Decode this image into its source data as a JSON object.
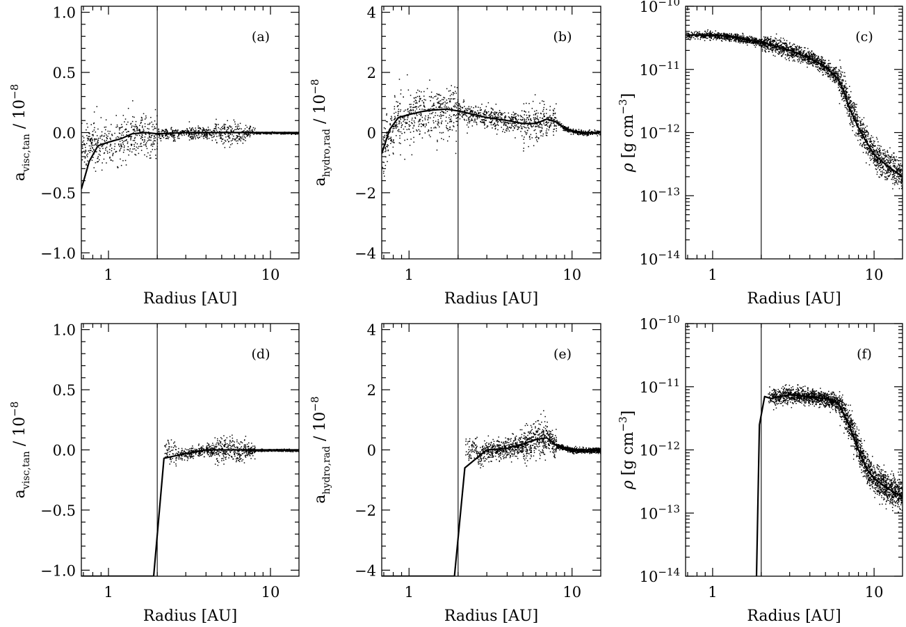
{
  "figure": {
    "description_colors": {
      "ink": "#000000",
      "background": "#ffffff"
    }
  },
  "chart_data": [
    {
      "id": "a",
      "type": "scatter",
      "panel_label": "(a)",
      "xlabel": "Radius [AU]",
      "x_scale": "log",
      "xlim": [
        0.68,
        15
      ],
      "x_ticks": [
        {
          "value": 1,
          "label": "1"
        },
        {
          "value": 10,
          "label": "10"
        }
      ],
      "ylabel_main": "a",
      "ylabel_sub": "visc,tan",
      "ylabel_suffix": " / 10",
      "ylabel_exp": "−8",
      "y_scale": "linear",
      "ylim": [
        -1.05,
        1.05
      ],
      "y_ticks": [
        {
          "value": -1,
          "label": "−1.0"
        },
        {
          "value": -0.5,
          "label": "−0.5"
        },
        {
          "value": 0,
          "label": "0.0"
        },
        {
          "value": 0.5,
          "label": "0.5"
        },
        {
          "value": 1,
          "label": "1.0"
        }
      ],
      "vline_x": 2.0,
      "mean_curve": {
        "x": [
          0.68,
          0.76,
          0.86,
          1.0,
          1.2,
          1.4,
          1.7,
          2.0,
          3.0,
          5.0,
          8.0,
          15.0
        ],
        "y": [
          -0.47,
          -0.24,
          -0.11,
          -0.08,
          -0.05,
          -0.01,
          0.0,
          -0.01,
          0.0,
          0.0,
          0.0,
          0.0
        ]
      },
      "scatter": {
        "x_range": [
          0.68,
          15
        ],
        "count": 1300,
        "inner_cut": 0.68,
        "profile": "visc_full",
        "seed": 11
      }
    },
    {
      "id": "b",
      "type": "scatter",
      "panel_label": "(b)",
      "xlabel": "Radius [AU]",
      "x_scale": "log",
      "xlim": [
        0.68,
        15
      ],
      "x_ticks": [
        {
          "value": 1,
          "label": "1"
        },
        {
          "value": 10,
          "label": "10"
        }
      ],
      "ylabel_main": "a",
      "ylabel_sub": "hydro,rad",
      "ylabel_suffix": " / 10",
      "ylabel_exp": "−8",
      "y_scale": "linear",
      "ylim": [
        -4.2,
        4.2
      ],
      "y_ticks": [
        {
          "value": -4,
          "label": "−4"
        },
        {
          "value": -2,
          "label": "−2"
        },
        {
          "value": 0,
          "label": "0"
        },
        {
          "value": 2,
          "label": "2"
        },
        {
          "value": 4,
          "label": "4"
        }
      ],
      "vline_x": 2.0,
      "mean_curve": {
        "x": [
          0.68,
          0.76,
          0.86,
          1.0,
          1.2,
          1.4,
          1.7,
          2.0,
          2.5,
          3.0,
          4.0,
          5.0,
          6.0,
          7.0,
          8.0,
          9.0,
          10.0,
          12.0,
          15.0
        ],
        "y": [
          -0.7,
          0.1,
          0.5,
          0.6,
          0.7,
          0.75,
          0.78,
          0.72,
          0.6,
          0.5,
          0.4,
          0.3,
          0.3,
          0.45,
          0.35,
          0.15,
          0.05,
          0.0,
          0.0
        ]
      },
      "scatter": {
        "x_range": [
          0.68,
          15
        ],
        "count": 1500,
        "inner_cut": 0.68,
        "profile": "hydro_full",
        "seed": 23
      }
    },
    {
      "id": "c",
      "type": "scatter",
      "panel_label": "(c)",
      "xlabel": "Radius [AU]",
      "x_scale": "log",
      "xlim": [
        0.68,
        15
      ],
      "x_ticks": [
        {
          "value": 1,
          "label": "1"
        },
        {
          "value": 10,
          "label": "10"
        }
      ],
      "ylabel_main": "ρ",
      "ylabel_units": "[g cm",
      "ylabel_exp": "−3",
      "ylabel_close": "]",
      "y_scale": "log",
      "ylim": [
        1e-14,
        1e-10
      ],
      "y_ticks": [
        {
          "value": 1e-14,
          "base": "10",
          "exp": "−14"
        },
        {
          "value": 1e-13,
          "base": "10",
          "exp": "−13"
        },
        {
          "value": 1e-12,
          "base": "10",
          "exp": "−12"
        },
        {
          "value": 1e-11,
          "base": "10",
          "exp": "−11"
        },
        {
          "value": 1e-10,
          "base": "10",
          "exp": "−10"
        }
      ],
      "vline_x": 2.0,
      "mean_curve": {
        "x": [
          0.68,
          1.0,
          1.3,
          1.6,
          2.0,
          2.5,
          3.0,
          4.0,
          5.0,
          6.0,
          6.5,
          7.0,
          8.0,
          9.0,
          10.0,
          12.0,
          15.0
        ],
        "y": [
          3.5e-11,
          3.5e-11,
          3.3e-11,
          3e-11,
          2.7e-11,
          2.3e-11,
          2e-11,
          1.5e-11,
          1.1e-11,
          7e-12,
          4.5e-12,
          2.5e-12,
          1.2e-12,
          7e-13,
          4.5e-13,
          3e-13,
          2e-13
        ]
      },
      "scatter": {
        "x_range": [
          0.68,
          15
        ],
        "count": 2600,
        "inner_cut": 0.68,
        "profile": "rho_full",
        "seed": 37
      }
    },
    {
      "id": "d",
      "type": "scatter",
      "panel_label": "(d)",
      "xlabel": "Radius [AU]",
      "x_scale": "log",
      "xlim": [
        0.68,
        15
      ],
      "x_ticks": [
        {
          "value": 1,
          "label": "1"
        },
        {
          "value": 10,
          "label": "10"
        }
      ],
      "ylabel_main": "a",
      "ylabel_sub": "visc,tan",
      "ylabel_suffix": " / 10",
      "ylabel_exp": "−8",
      "y_scale": "linear",
      "ylim": [
        -1.05,
        1.05
      ],
      "y_ticks": [
        {
          "value": -1,
          "label": "−1.0"
        },
        {
          "value": -0.5,
          "label": "−0.5"
        },
        {
          "value": 0,
          "label": "0.0"
        },
        {
          "value": 0.5,
          "label": "0.5"
        },
        {
          "value": 1,
          "label": "1.0"
        }
      ],
      "vline_x": 2.0,
      "mean_curve": {
        "x": [
          0.68,
          1.0,
          1.5,
          1.9,
          2.2,
          3.0,
          4.0,
          6.0,
          8.0,
          15.0
        ],
        "y": [
          -1.05,
          -1.05,
          -1.05,
          -1.05,
          -0.07,
          -0.03,
          0.0,
          0.0,
          0.0,
          0.0
        ]
      },
      "scatter": {
        "x_range": [
          2.2,
          15
        ],
        "count": 1100,
        "inner_cut": 2.2,
        "profile": "visc_cut",
        "seed": 41
      }
    },
    {
      "id": "e",
      "type": "scatter",
      "panel_label": "(e)",
      "xlabel": "Radius [AU]",
      "x_scale": "log",
      "xlim": [
        0.68,
        15
      ],
      "x_ticks": [
        {
          "value": 1,
          "label": "1"
        },
        {
          "value": 10,
          "label": "10"
        }
      ],
      "ylabel_main": "a",
      "ylabel_sub": "hydro,rad",
      "ylabel_suffix": " / 10",
      "ylabel_exp": "−8",
      "y_scale": "linear",
      "ylim": [
        -4.2,
        4.2
      ],
      "y_ticks": [
        {
          "value": -4,
          "label": "−4"
        },
        {
          "value": -2,
          "label": "−2"
        },
        {
          "value": 0,
          "label": "0"
        },
        {
          "value": 2,
          "label": "2"
        },
        {
          "value": 4,
          "label": "4"
        }
      ],
      "vline_x": 2.0,
      "mean_curve": {
        "x": [
          0.68,
          1.0,
          1.5,
          1.9,
          2.2,
          2.7,
          3.0,
          4.0,
          5.0,
          6.0,
          7.0,
          8.0,
          10.0,
          15.0
        ],
        "y": [
          -4.2,
          -4.2,
          -4.2,
          -4.2,
          -0.6,
          -0.2,
          0.0,
          0.05,
          0.2,
          0.35,
          0.4,
          0.15,
          0.0,
          0.0
        ]
      },
      "scatter": {
        "x_range": [
          2.2,
          15
        ],
        "count": 1500,
        "inner_cut": 2.2,
        "profile": "hydro_cut",
        "seed": 53
      }
    },
    {
      "id": "f",
      "type": "scatter",
      "panel_label": "(f)",
      "xlabel": "Radius [AU]",
      "x_scale": "log",
      "xlim": [
        0.68,
        15
      ],
      "x_ticks": [
        {
          "value": 1,
          "label": "1"
        },
        {
          "value": 10,
          "label": "10"
        }
      ],
      "ylabel_main": "ρ",
      "ylabel_units": "[g cm",
      "ylabel_exp": "−3",
      "ylabel_close": "]",
      "y_scale": "log",
      "ylim": [
        1e-14,
        1e-10
      ],
      "y_ticks": [
        {
          "value": 1e-14,
          "base": "10",
          "exp": "−14"
        },
        {
          "value": 1e-13,
          "base": "10",
          "exp": "−13"
        },
        {
          "value": 1e-12,
          "base": "10",
          "exp": "−12"
        },
        {
          "value": 1e-11,
          "base": "10",
          "exp": "−11"
        },
        {
          "value": 1e-10,
          "base": "10",
          "exp": "−10"
        }
      ],
      "vline_x": 2.0,
      "mean_curve": {
        "x": [
          1.87,
          1.95,
          2.1,
          2.3,
          2.6,
          3.0,
          4.0,
          5.0,
          6.0,
          7.0,
          8.0,
          9.0,
          10.0,
          12.0,
          15.0
        ],
        "y": [
          1e-14,
          2.5e-12,
          7e-12,
          6.5e-12,
          7e-12,
          7.5e-12,
          7e-12,
          6.5e-12,
          5.5e-12,
          2.5e-12,
          1e-12,
          5e-13,
          3.5e-13,
          2.5e-13,
          1.8e-13
        ]
      },
      "scatter": {
        "x_range": [
          2.2,
          15
        ],
        "count": 2300,
        "inner_cut": 2.2,
        "profile": "rho_cut",
        "seed": 67
      }
    }
  ]
}
